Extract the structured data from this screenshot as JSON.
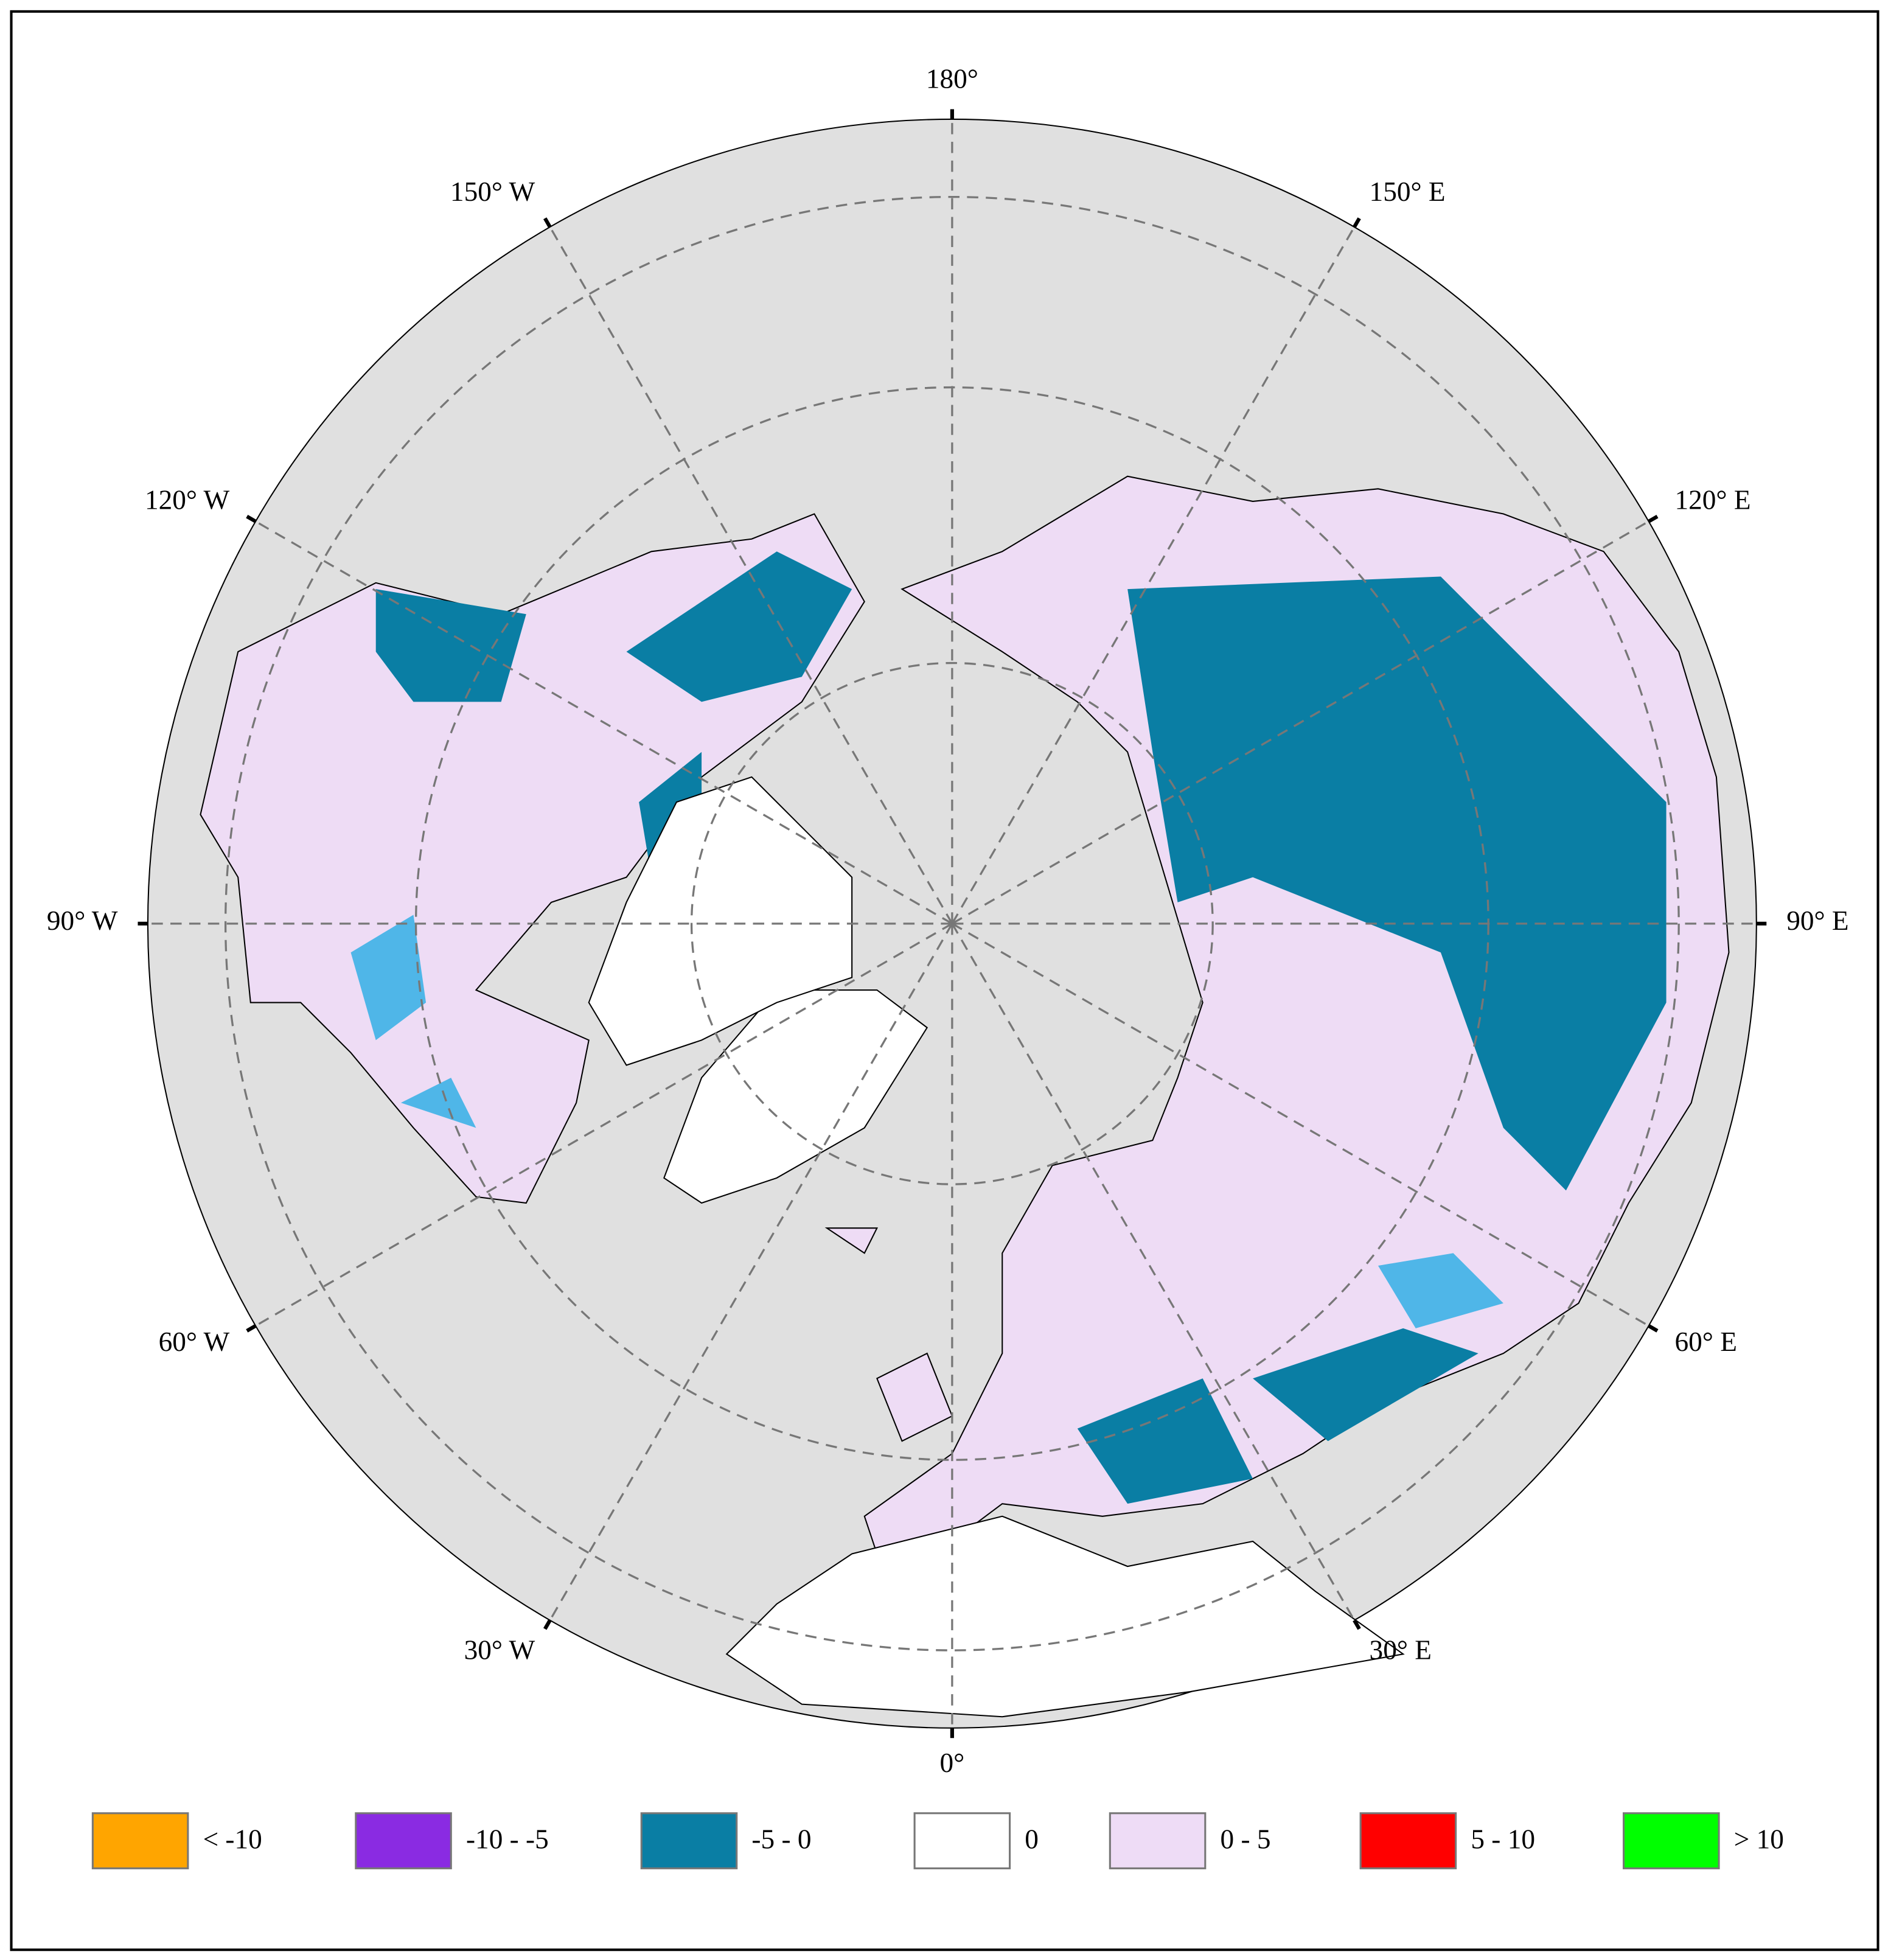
{
  "map": {
    "longitude_lines": [
      {
        "value": 180,
        "label": "180°"
      },
      {
        "value": -150,
        "label": "150° W"
      },
      {
        "value": 150,
        "label": "150° E"
      },
      {
        "value": -120,
        "label": "120° W"
      },
      {
        "value": 120,
        "label": "120° E"
      },
      {
        "value": -90,
        "label": "90° W"
      },
      {
        "value": 90,
        "label": "90° E"
      },
      {
        "value": -60,
        "label": "60° W"
      },
      {
        "value": 60,
        "label": "60° E"
      },
      {
        "value": -30,
        "label": "30° W"
      },
      {
        "value": 30,
        "label": "30° E"
      },
      {
        "value": 0,
        "label": "0°"
      }
    ]
  },
  "legend": {
    "items": [
      {
        "label": "< -10",
        "color": "#ffa500"
      },
      {
        "label": "-10 - -5",
        "color": "#8a2be2"
      },
      {
        "label": "-5 - 0",
        "color": "#0a7ea4"
      },
      {
        "label": "0",
        "color": "#ffffff"
      },
      {
        "label": "0 - 5",
        "color": "#eedcf6"
      },
      {
        "label": "5 - 10",
        "color": "#ff0000"
      },
      {
        "label": "> 10",
        "color": "#00ff00"
      }
    ]
  }
}
